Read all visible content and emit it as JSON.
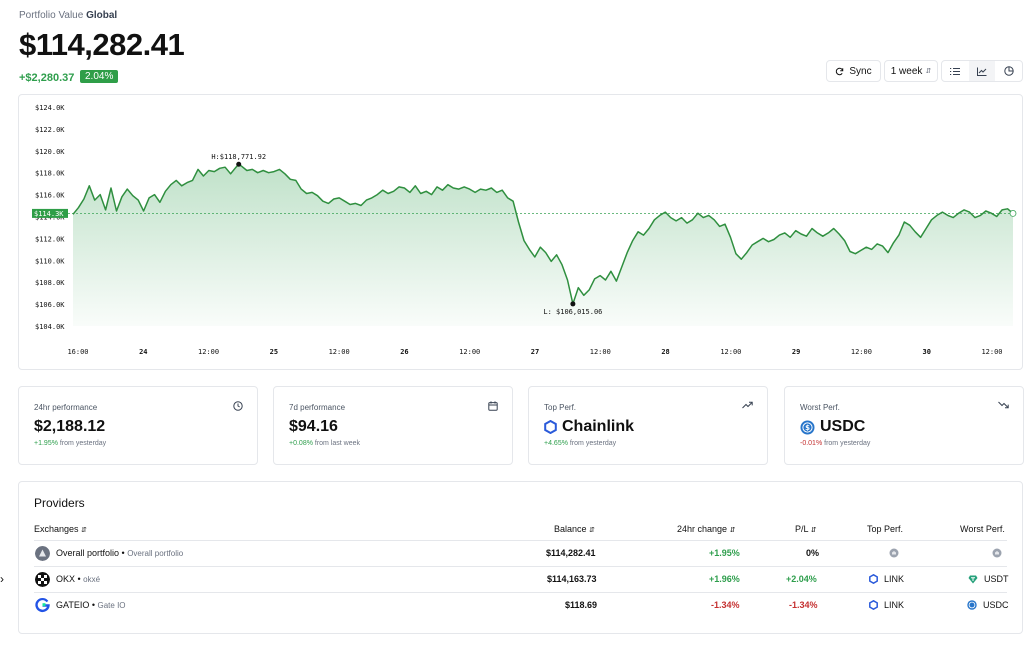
{
  "header": {
    "label": "Portfolio Value",
    "scope": "Global",
    "total": "$114,282.41",
    "change": "+$2,280.37",
    "change_pct": "2.04%"
  },
  "toolbar": {
    "sync_label": "Sync",
    "range_label": "1 week",
    "views": [
      "list-icon",
      "line-chart-icon",
      "pie-chart-icon"
    ],
    "active_view": "line-chart-icon"
  },
  "chart_data": {
    "type": "area",
    "x_tick_labels": [
      "16:00",
      "24",
      "12:00",
      "25",
      "12:00",
      "26",
      "12:00",
      "27",
      "12:00",
      "28",
      "12:00",
      "29",
      "12:00",
      "30",
      "12:00"
    ],
    "y_tick_labels": [
      "$124.0K",
      "$122.0K",
      "$120.0K",
      "$118.0K",
      "$116.0K",
      "$114.0K",
      "$112.0K",
      "$110.0K",
      "$108.0K",
      "$106.0K",
      "$104.0K"
    ],
    "ylim": [
      104000,
      124000
    ],
    "x_range_hours": [
      0,
      173
    ],
    "current_label": "$114.3K",
    "current_value": 114282.41,
    "high_label": "H:$118,771.92",
    "high_value": 118771.92,
    "high_x_hours": 30.5,
    "low_label": "L: $106,015.06",
    "low_value": 106015.06,
    "low_x_hours": 92,
    "series": [
      {
        "values": [
          [
            0,
            114200
          ],
          [
            1,
            114800
          ],
          [
            2,
            115600
          ],
          [
            3,
            116800
          ],
          [
            4,
            115500
          ],
          [
            5,
            116000
          ],
          [
            6,
            114600
          ],
          [
            7,
            116600
          ],
          [
            8,
            114500
          ],
          [
            9,
            115800
          ],
          [
            10,
            116500
          ],
          [
            11,
            115900
          ],
          [
            12,
            115500
          ],
          [
            13,
            114500
          ],
          [
            14,
            115700
          ],
          [
            15,
            116000
          ],
          [
            16,
            115300
          ],
          [
            17,
            116300
          ],
          [
            18,
            116900
          ],
          [
            19,
            117300
          ],
          [
            20,
            116800
          ],
          [
            21,
            117100
          ],
          [
            22,
            117300
          ],
          [
            23,
            118300
          ],
          [
            24,
            117700
          ],
          [
            25,
            118200
          ],
          [
            26,
            118100
          ],
          [
            27,
            118400
          ],
          [
            28,
            118500
          ],
          [
            29,
            117900
          ],
          [
            30,
            118500
          ],
          [
            30.5,
            118771.92
          ],
          [
            31,
            118600
          ],
          [
            32,
            118200
          ],
          [
            33,
            118300
          ],
          [
            34,
            118000
          ],
          [
            35,
            118200
          ],
          [
            36,
            118000
          ],
          [
            37,
            118100
          ],
          [
            38,
            118300
          ],
          [
            39,
            117900
          ],
          [
            40,
            117400
          ],
          [
            41,
            117300
          ],
          [
            42,
            116500
          ],
          [
            43,
            116100
          ],
          [
            44,
            116200
          ],
          [
            45,
            115900
          ],
          [
            46,
            115400
          ],
          [
            47,
            115200
          ],
          [
            48,
            115600
          ],
          [
            49,
            115700
          ],
          [
            50,
            115400
          ],
          [
            51,
            115100
          ],
          [
            52,
            115200
          ],
          [
            53,
            115000
          ],
          [
            54,
            115500
          ],
          [
            55,
            115700
          ],
          [
            56,
            116000
          ],
          [
            57,
            116400
          ],
          [
            58,
            116100
          ],
          [
            59,
            116300
          ],
          [
            60,
            116700
          ],
          [
            61,
            116600
          ],
          [
            62,
            116200
          ],
          [
            63,
            116800
          ],
          [
            64,
            116100
          ],
          [
            65,
            116300
          ],
          [
            66,
            116000
          ],
          [
            67,
            116700
          ],
          [
            68,
            116400
          ],
          [
            69,
            116900
          ],
          [
            70,
            116600
          ],
          [
            71,
            116500
          ],
          [
            72,
            116700
          ],
          [
            73,
            116500
          ],
          [
            74,
            116200
          ],
          [
            75,
            116500
          ],
          [
            76,
            116400
          ],
          [
            77,
            116600
          ],
          [
            78,
            116200
          ],
          [
            79,
            116400
          ],
          [
            80,
            115700
          ],
          [
            81,
            115400
          ],
          [
            82,
            113500
          ],
          [
            83,
            111800
          ],
          [
            84,
            111000
          ],
          [
            85,
            110300
          ],
          [
            86,
            111200
          ],
          [
            87,
            110700
          ],
          [
            88,
            109900
          ],
          [
            89,
            110500
          ],
          [
            90,
            109600
          ],
          [
            91,
            108200
          ],
          [
            92,
            106015.06
          ],
          [
            93,
            107500
          ],
          [
            94,
            106800
          ],
          [
            95,
            107300
          ],
          [
            96,
            108300
          ],
          [
            97,
            108600
          ],
          [
            98,
            108200
          ],
          [
            99,
            109000
          ],
          [
            100,
            108100
          ],
          [
            101,
            109400
          ],
          [
            102,
            110700
          ],
          [
            103,
            111800
          ],
          [
            104,
            112600
          ],
          [
            105,
            112300
          ],
          [
            106,
            112900
          ],
          [
            107,
            113700
          ],
          [
            108,
            114100
          ],
          [
            109,
            114400
          ],
          [
            110,
            113900
          ],
          [
            111,
            113600
          ],
          [
            112,
            113900
          ],
          [
            113,
            113400
          ],
          [
            114,
            113700
          ],
          [
            115,
            114300
          ],
          [
            116,
            113900
          ],
          [
            117,
            114100
          ],
          [
            118,
            113700
          ],
          [
            119,
            113100
          ],
          [
            120,
            113300
          ],
          [
            121,
            112100
          ],
          [
            122,
            110600
          ],
          [
            123,
            110100
          ],
          [
            124,
            110700
          ],
          [
            125,
            111400
          ],
          [
            126,
            111700
          ],
          [
            127,
            112000
          ],
          [
            128,
            111700
          ],
          [
            129,
            111900
          ],
          [
            130,
            112300
          ],
          [
            131,
            112500
          ],
          [
            132,
            112100
          ],
          [
            133,
            112700
          ],
          [
            134,
            112400
          ],
          [
            135,
            112200
          ],
          [
            136,
            112900
          ],
          [
            137,
            112500
          ],
          [
            138,
            112200
          ],
          [
            139,
            112500
          ],
          [
            140,
            112900
          ],
          [
            141,
            112400
          ],
          [
            142,
            111800
          ],
          [
            143,
            110800
          ],
          [
            144,
            110600
          ],
          [
            145,
            110900
          ],
          [
            146,
            111200
          ],
          [
            147,
            111000
          ],
          [
            148,
            111500
          ],
          [
            149,
            111300
          ],
          [
            150,
            110700
          ],
          [
            151,
            111600
          ],
          [
            152,
            112300
          ],
          [
            153,
            113500
          ],
          [
            154,
            113200
          ],
          [
            155,
            112600
          ],
          [
            156,
            112100
          ],
          [
            157,
            112900
          ],
          [
            158,
            113700
          ],
          [
            159,
            114100
          ],
          [
            160,
            114400
          ],
          [
            161,
            114100
          ],
          [
            162,
            113900
          ],
          [
            163,
            114300
          ],
          [
            164,
            114600
          ],
          [
            165,
            114400
          ],
          [
            166,
            113900
          ],
          [
            167,
            114100
          ],
          [
            168,
            114500
          ],
          [
            169,
            114300
          ],
          [
            170,
            114000
          ],
          [
            171,
            114600
          ],
          [
            172,
            114700
          ],
          [
            173,
            114282.41
          ]
        ]
      }
    ]
  },
  "cards": [
    {
      "label": "24hr performance",
      "value": "$2,188.12",
      "delta": "+1.95%",
      "delta_suffix": "from yesterday",
      "icon": "clock-icon"
    },
    {
      "label": "7d performance",
      "value": "$94.16",
      "delta": "+0.08%",
      "delta_suffix": "from last week",
      "icon": "calendar-icon"
    },
    {
      "label": "Top Perf.",
      "value": "Chainlink",
      "delta": "+4.65%",
      "delta_suffix": "from yesterday",
      "icon": "trending-up-icon",
      "coin_icon": "chainlink-icon"
    },
    {
      "label": "Worst Perf.",
      "value": "USDC",
      "delta": "-0.01%",
      "delta_suffix": "from yesterday",
      "icon": "trending-down-icon",
      "coin_icon": "usdc-icon"
    }
  ],
  "providers": {
    "title": "Providers",
    "columns": [
      "Exchanges",
      "Balance",
      "24hr change",
      "P/L",
      "Top Perf.",
      "Worst Perf."
    ],
    "rows": [
      {
        "name": "Overall portfolio",
        "sub": "Overall portfolio",
        "balance": "$114,282.41",
        "change": "+1.95%",
        "pl": "0%",
        "top": "",
        "worst": "",
        "icon": "overall-portfolio-icon"
      },
      {
        "name": "OKX",
        "sub": "okxé",
        "balance": "$114,163.73",
        "change": "+1.96%",
        "pl": "+2.04%",
        "top": "LINK",
        "worst": "USDT",
        "icon": "okx-icon"
      },
      {
        "name": "GATEIO",
        "sub": "Gate IO",
        "balance": "$118.69",
        "change": "-1.34%",
        "pl": "-1.34%",
        "top": "LINK",
        "worst": "USDC",
        "icon": "gateio-icon"
      }
    ]
  },
  "colors": {
    "positive": "#2e9e4c",
    "negative": "#c53030",
    "line": "#2f8f3f"
  }
}
